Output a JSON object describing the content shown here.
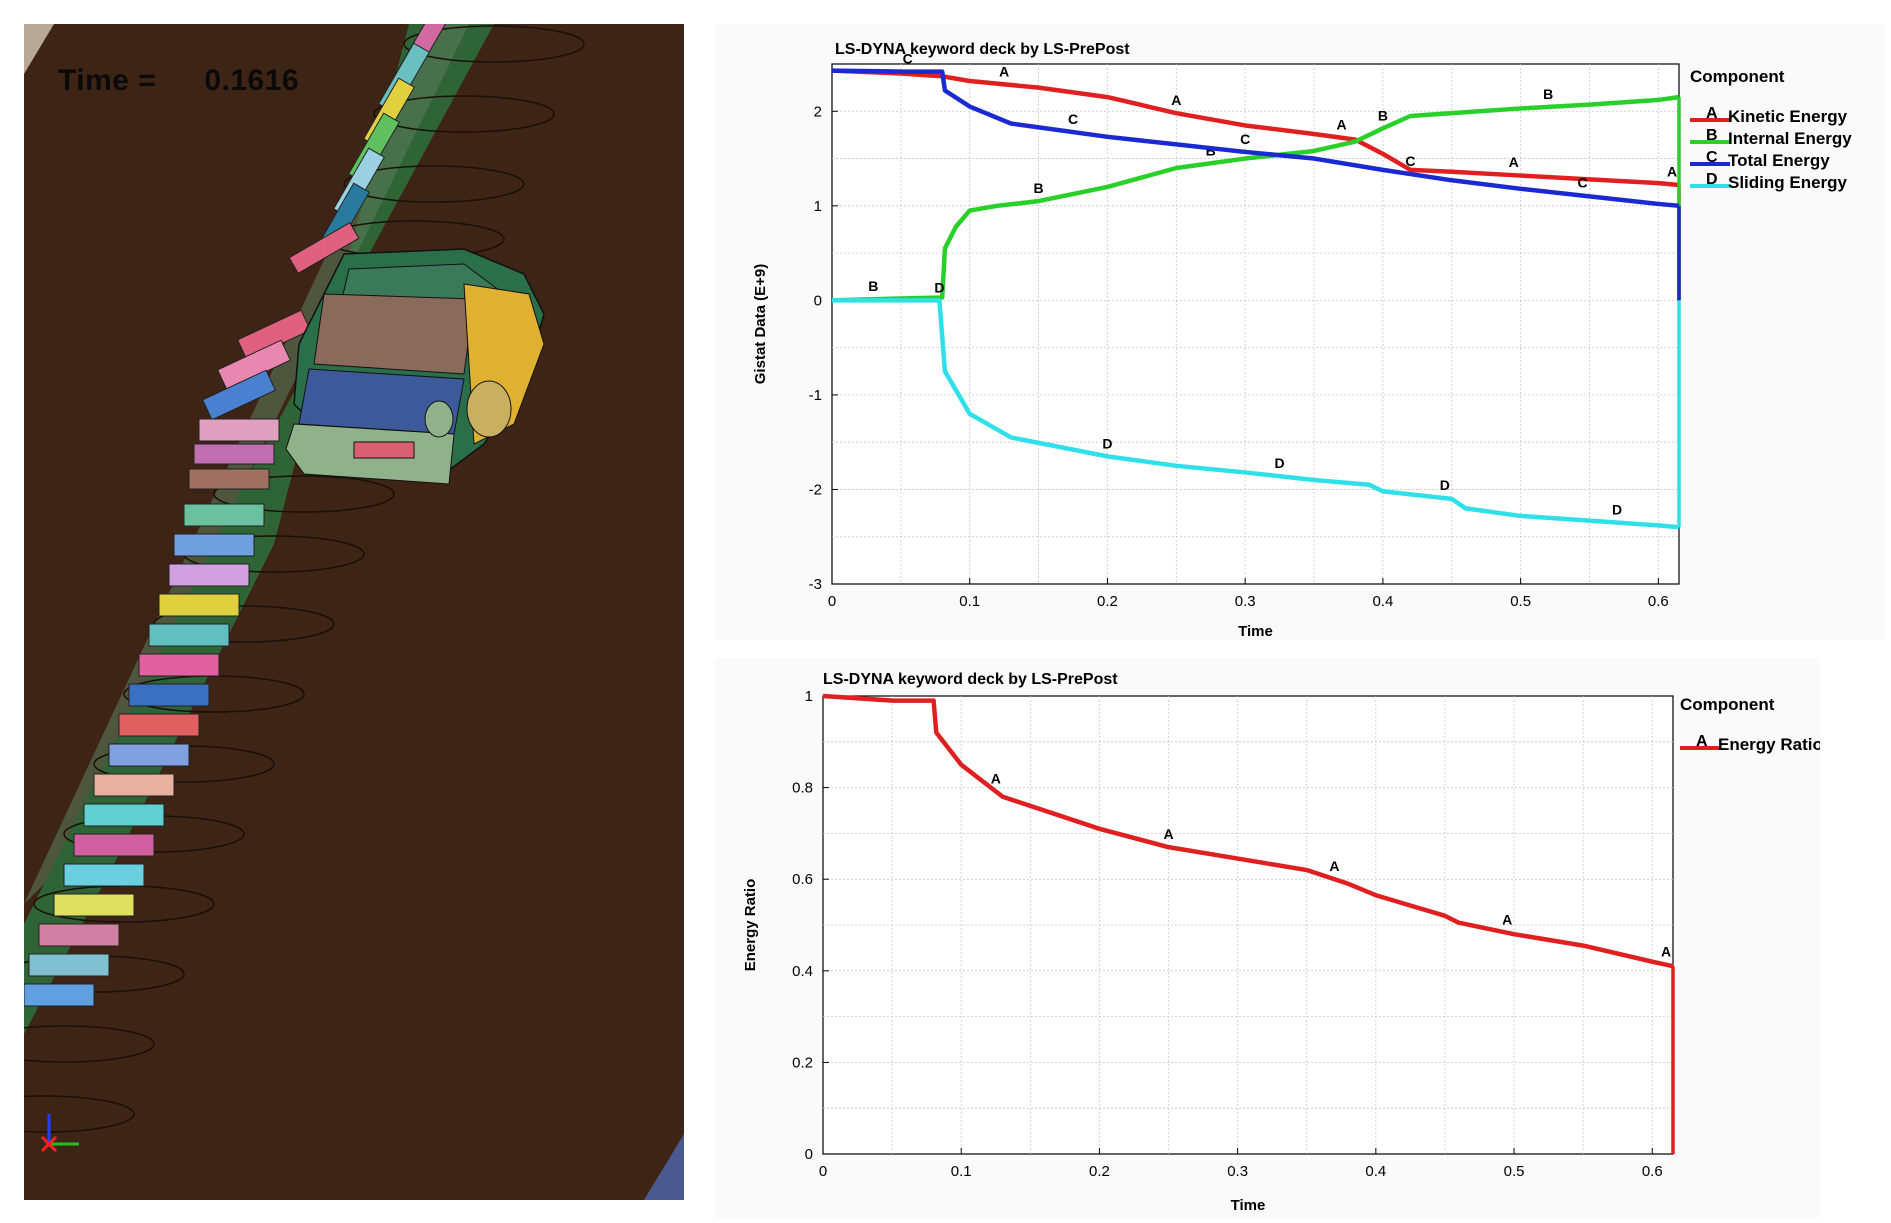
{
  "simulation": {
    "time_label": "Time =",
    "time_value": "0.1616",
    "colors": {
      "ground": "#3e2415",
      "car_roof": "#8a6a5a",
      "car_hood": "#3c5a9a",
      "car_front": "#8fb28a",
      "car_side": "#e0b030",
      "barrier_green": "#2e6b3a"
    },
    "icons": [
      "axis-triad-icon"
    ]
  },
  "charts": [
    {
      "title": "LS-DYNA keyword deck by LS-PrePost",
      "legend_title": "Component",
      "ylabel": "Gistat Data (E+9)",
      "xlabel": "Time",
      "x_ticks": [
        "0",
        "0.1",
        "0.2",
        "0.3",
        "0.4",
        "0.5",
        "0.6"
      ],
      "y_ticks": [
        "-3",
        "-2",
        "-1",
        "0",
        "1",
        "2"
      ]
    },
    {
      "title": "LS-DYNA keyword deck by LS-PrePost",
      "legend_title": "Component",
      "ylabel": "Energy Ratio",
      "xlabel": "Time",
      "x_ticks": [
        "0",
        "0.1",
        "0.2",
        "0.3",
        "0.4",
        "0.5",
        "0.6"
      ],
      "y_ticks": [
        "0",
        "0.2",
        "0.4",
        "0.6",
        "0.8",
        "1"
      ]
    }
  ],
  "chart_data": [
    {
      "type": "line",
      "title": "LS-DYNA keyword deck by LS-PrePost",
      "xlabel": "Time",
      "ylabel": "Gistat Data (E+9)",
      "xlim": [
        0,
        0.615
      ],
      "ylim": [
        -3,
        2.5
      ],
      "grid": true,
      "legend_title": "Component",
      "legend_position": "right",
      "series": [
        {
          "name": "Kinetic Energy",
          "marker": "A",
          "color": "#e02020",
          "x": [
            0,
            0.05,
            0.08,
            0.1,
            0.15,
            0.2,
            0.25,
            0.3,
            0.35,
            0.38,
            0.4,
            0.42,
            0.45,
            0.5,
            0.55,
            0.6,
            0.615
          ],
          "y": [
            2.43,
            2.4,
            2.37,
            2.32,
            2.25,
            2.15,
            1.98,
            1.85,
            1.76,
            1.7,
            1.55,
            1.38,
            1.36,
            1.32,
            1.28,
            1.24,
            1.22
          ],
          "marker_x": [
            0.125,
            0.25,
            0.37,
            0.495,
            0.61
          ]
        },
        {
          "name": "Internal Energy",
          "marker": "B",
          "color": "#2ad02a",
          "x": [
            0,
            0.05,
            0.08,
            0.082,
            0.09,
            0.1,
            0.12,
            0.15,
            0.2,
            0.25,
            0.3,
            0.35,
            0.38,
            0.4,
            0.42,
            0.45,
            0.5,
            0.55,
            0.6,
            0.615
          ],
          "y": [
            0.0,
            0.02,
            0.03,
            0.55,
            0.78,
            0.95,
            1.0,
            1.05,
            1.2,
            1.4,
            1.5,
            1.58,
            1.68,
            1.82,
            1.95,
            1.98,
            2.03,
            2.07,
            2.12,
            2.15
          ],
          "marker_x": [
            0.03,
            0.15,
            0.275,
            0.4,
            0.52
          ]
        },
        {
          "name": "Total Energy",
          "marker": "C",
          "color": "#1a2ad0",
          "x": [
            0,
            0.05,
            0.08,
            0.082,
            0.1,
            0.13,
            0.2,
            0.25,
            0.3,
            0.35,
            0.4,
            0.45,
            0.5,
            0.55,
            0.6,
            0.615
          ],
          "y": [
            2.43,
            2.42,
            2.42,
            2.22,
            2.05,
            1.87,
            1.73,
            1.65,
            1.57,
            1.5,
            1.38,
            1.27,
            1.18,
            1.1,
            1.02,
            1.0
          ],
          "marker_x": [
            0.055,
            0.175,
            0.3,
            0.42,
            0.545
          ]
        },
        {
          "name": "Sliding Energy",
          "marker": "D",
          "color": "#30e0e8",
          "x": [
            0,
            0.05,
            0.078,
            0.082,
            0.09,
            0.1,
            0.13,
            0.2,
            0.25,
            0.3,
            0.35,
            0.39,
            0.4,
            0.45,
            0.46,
            0.5,
            0.55,
            0.6,
            0.615
          ],
          "y": [
            0.0,
            0.0,
            0.0,
            -0.75,
            -0.95,
            -1.2,
            -1.45,
            -1.65,
            -1.75,
            -1.82,
            -1.9,
            -1.95,
            -2.02,
            -2.1,
            -2.2,
            -2.28,
            -2.33,
            -2.38,
            -2.4
          ],
          "marker_x": [
            0.078,
            0.2,
            0.325,
            0.445,
            0.57
          ]
        }
      ]
    },
    {
      "type": "line",
      "title": "LS-DYNA keyword deck by LS-PrePost",
      "xlabel": "Time",
      "ylabel": "Energy Ratio",
      "xlim": [
        0,
        0.615
      ],
      "ylim": [
        0,
        1
      ],
      "grid": true,
      "legend_title": "Component",
      "legend_position": "right",
      "series": [
        {
          "name": "Energy Ratio",
          "marker": "A",
          "color": "#e02020",
          "x": [
            0,
            0.05,
            0.08,
            0.082,
            0.1,
            0.13,
            0.15,
            0.2,
            0.25,
            0.3,
            0.35,
            0.38,
            0.4,
            0.45,
            0.46,
            0.5,
            0.55,
            0.6,
            0.615
          ],
          "y": [
            1.0,
            0.99,
            0.99,
            0.92,
            0.85,
            0.78,
            0.76,
            0.71,
            0.67,
            0.645,
            0.62,
            0.59,
            0.565,
            0.52,
            0.505,
            0.48,
            0.455,
            0.42,
            0.41
          ],
          "marker_x": [
            0.125,
            0.25,
            0.37,
            0.495,
            0.61
          ]
        }
      ]
    }
  ]
}
